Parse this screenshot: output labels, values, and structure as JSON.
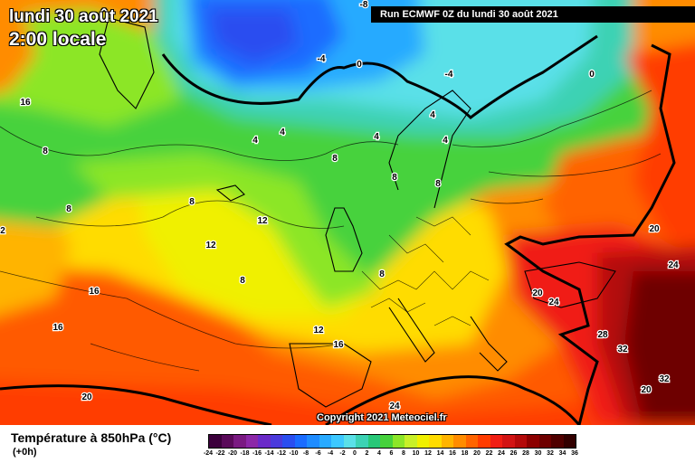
{
  "header": {
    "date_line": "lundi 30 août 2021",
    "time_line": "2:00 locale",
    "run_label": "Run ECMWF 0Z du lundi 30 août 2021"
  },
  "footer": {
    "copyright": "Copyright 2021 Meteociel.fr",
    "legend_title": "Température à 850hPa (°C)",
    "legend_sub": "(+0h)"
  },
  "legend_scale": {
    "labels": [
      "-24",
      "-22",
      "-20",
      "-18",
      "-16",
      "-14",
      "-12",
      "-10",
      "-8",
      "-6",
      "-4",
      "-2",
      "0",
      "2",
      "4",
      "6",
      "8",
      "10",
      "12",
      "14",
      "16",
      "18",
      "20",
      "22",
      "24",
      "26",
      "28",
      "30",
      "32",
      "34",
      "36"
    ],
    "colors": [
      "#3c003c",
      "#5a0a5a",
      "#7a1a82",
      "#8c28a8",
      "#6a2ac8",
      "#4a3adc",
      "#2a4ef0",
      "#1a6cff",
      "#1e8cff",
      "#28aaff",
      "#3cc8ff",
      "#5ae0e8",
      "#3cd2b4",
      "#28c878",
      "#46d23c",
      "#8ce628",
      "#c8f028",
      "#f0f000",
      "#ffdc00",
      "#ffb400",
      "#ff8c00",
      "#ff6400",
      "#ff3c00",
      "#f01e14",
      "#d21414",
      "#b40a0a",
      "#8c0000",
      "#6e0000",
      "#500000",
      "#320000"
    ]
  },
  "isotherm_labels": [
    {
      "text": "-8"
    },
    {
      "text": "-4"
    },
    {
      "text": "0"
    },
    {
      "text": "-4"
    },
    {
      "text": "0"
    },
    {
      "text": "16"
    },
    {
      "text": "4"
    },
    {
      "text": "4"
    },
    {
      "text": "4"
    },
    {
      "text": "4"
    },
    {
      "text": "4"
    },
    {
      "text": "8"
    },
    {
      "text": "8"
    },
    {
      "text": "8"
    },
    {
      "text": "8"
    },
    {
      "text": "8"
    },
    {
      "text": "8"
    },
    {
      "text": "2"
    },
    {
      "text": "12"
    },
    {
      "text": "12"
    },
    {
      "text": "8"
    },
    {
      "text": "8"
    },
    {
      "text": "16"
    },
    {
      "text": "16"
    },
    {
      "text": "12"
    },
    {
      "text": "16"
    },
    {
      "text": "20"
    },
    {
      "text": "24"
    },
    {
      "text": "24"
    },
    {
      "text": "20"
    },
    {
      "text": "20"
    },
    {
      "text": "24"
    },
    {
      "text": "28"
    },
    {
      "text": "32"
    },
    {
      "text": "32"
    },
    {
      "text": "20"
    }
  ]
}
